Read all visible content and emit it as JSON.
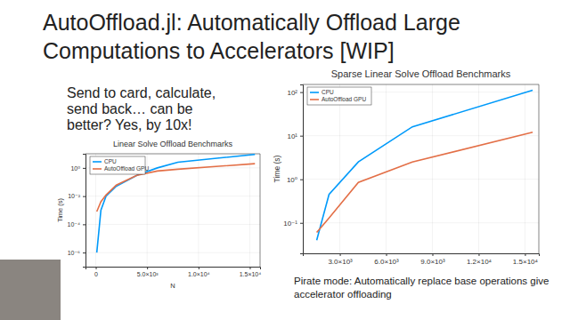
{
  "slide": {
    "title": [
      "AutoOffload.jl: Automatically Offload Large",
      "Computations to Accelerators [WIP]"
    ],
    "text": [
      "Send to card, calculate,",
      "send back… can be",
      "better? Yes, by 10x!"
    ],
    "caption": [
      "Pirate mode: Automatically replace base operations give",
      "accelerator offloading"
    ]
  },
  "chart_data": [
    {
      "type": "line",
      "title": "Linear Solve Offload Benchmarks",
      "x_label": "N",
      "y_label": "Time (s)",
      "log": "y",
      "grid": true,
      "legend": "top-left",
      "x": [
        100,
        500,
        1000,
        2000,
        4000,
        6000,
        8000,
        12000,
        15500
      ],
      "xlim": [
        -1000,
        16000
      ],
      "xticks": [
        0,
        {
          "value": 5000,
          "label": "5.0×10³"
        },
        {
          "value": 10000,
          "label": "1.0×10⁴"
        },
        {
          "value": 15000,
          "label": "1.5×10⁴"
        }
      ],
      "ylim": [
        1e-07,
        10
      ],
      "yticks": [
        {
          "value": 1e-06,
          "label": "10⁻⁶"
        },
        {
          "value": 0.0001,
          "label": "10⁻⁴"
        },
        {
          "value": 0.01,
          "label": "10⁻²"
        },
        {
          "value": 1,
          "label": "10⁰"
        }
      ],
      "series": [
        {
          "name": "CPU",
          "color": "#009afa",
          "values": [
            1e-06,
            0.001,
            0.01,
            0.05,
            0.3,
            1,
            2.5,
            5,
            9
          ]
        },
        {
          "name": "AutoOffload GPU",
          "color": "#e36f47",
          "values": [
            0.0008,
            0.004,
            0.012,
            0.06,
            0.3,
            0.6,
            0.8,
            1.3,
            2
          ]
        }
      ]
    },
    {
      "type": "line",
      "title": "Sparse Linear Solve Offload Benchmarks",
      "y_label": "Time (s)",
      "log": "y",
      "grid": true,
      "legend": "top-left",
      "x": [
        1500,
        2300,
        4200,
        7700,
        15500
      ],
      "xlim": [
        600,
        15900
      ],
      "xticks": [
        {
          "value": 3000,
          "label": "3.0×10³"
        },
        {
          "value": 6000,
          "label": "6.0×10³"
        },
        {
          "value": 9000,
          "label": "9.0×10³"
        },
        {
          "value": 12000,
          "label": "1.2×10⁴"
        },
        {
          "value": 15000,
          "label": "1.5×10⁴"
        }
      ],
      "ylim": [
        0.02,
        150
      ],
      "yticks": [
        {
          "value": 0.1,
          "label": "10⁻¹"
        },
        {
          "value": 1,
          "label": "10⁰"
        },
        {
          "value": 10,
          "label": "10¹"
        },
        {
          "value": 100,
          "label": "10²"
        }
      ],
      "series": [
        {
          "name": "CPU",
          "color": "#009afa",
          "values": [
            0.04,
            0.45,
            2.5,
            16,
            110
          ]
        },
        {
          "name": "AutoOffload GPU",
          "color": "#e36f47",
          "values": [
            0.06,
            0.13,
            0.85,
            2.5,
            12
          ]
        }
      ]
    }
  ]
}
